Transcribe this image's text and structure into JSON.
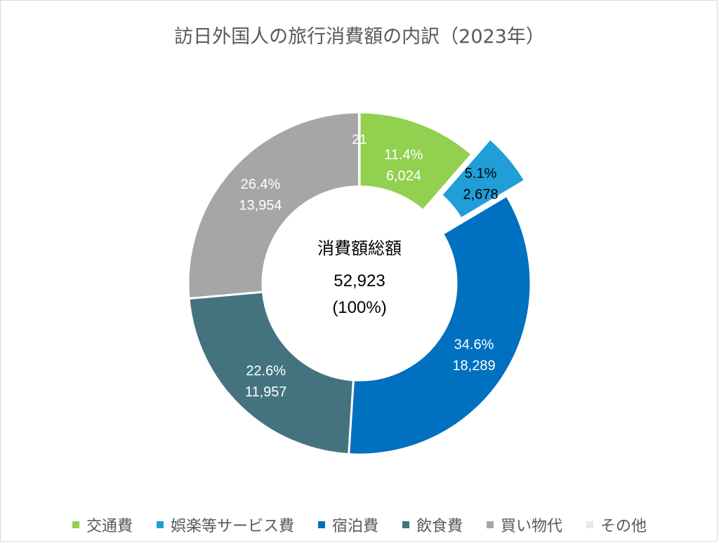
{
  "colors": {
    "交通費": "#92d050",
    "娯楽等サービス費": "#1f9ed8",
    "宿泊費": "#0070c0",
    "飲食費": "#44737f",
    "買い物代": "#a6a6a6",
    "その他": "#e8e8e8"
  },
  "chart_data": {
    "type": "pie",
    "title": "訪日外国人の旅行消費額の内訳（2023年）",
    "center_label": {
      "title": "消費額総額",
      "total": "52,923",
      "percent": "(100%)"
    },
    "slices": [
      {
        "name": "交通費",
        "value": 6024,
        "value_label": "6,024",
        "percent_label": "11.4%"
      },
      {
        "name": "娯楽等サービス費",
        "value": 2678,
        "value_label": "2,678",
        "percent_label": "5.1%",
        "exploded": true
      },
      {
        "name": "宿泊費",
        "value": 18289,
        "value_label": "18,289",
        "percent_label": "34.6%"
      },
      {
        "name": "飲食費",
        "value": 11957,
        "value_label": "11,957",
        "percent_label": "22.6%"
      },
      {
        "name": "買い物代",
        "value": 13954,
        "value_label": "13,954",
        "percent_label": "26.4%"
      },
      {
        "name": "その他",
        "value": 21,
        "value_label": "21",
        "percent_label": ""
      }
    ],
    "legend": [
      "交通費",
      "娯楽等サービス費",
      "宿泊費",
      "飲食費",
      "買い物代",
      "その他"
    ],
    "legend_position": "bottom"
  }
}
